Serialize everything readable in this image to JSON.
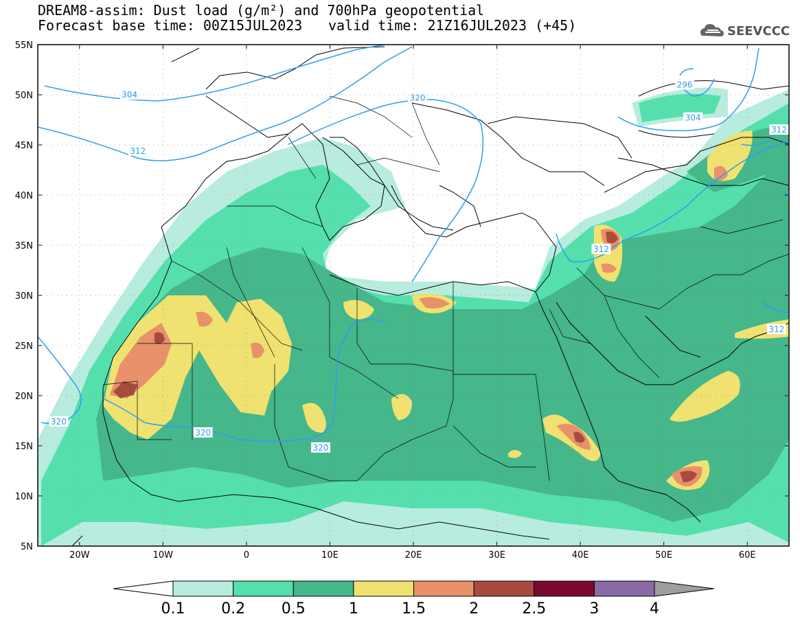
{
  "header": {
    "title": "DREAM8-assim: Dust load (g/m²) and 700hPa geopotential",
    "base_time": "Forecast base time: 00Z15JUL2023",
    "valid_time": "valid time: 21Z16JUL2023 (+45)",
    "logo_text": "SEEVCCC"
  },
  "map": {
    "lon_range": [
      -25,
      65
    ],
    "lat_range": [
      5,
      55
    ],
    "lat_labels": [
      "55N",
      "50N",
      "45N",
      "40N",
      "35N",
      "30N",
      "25N",
      "20N",
      "15N",
      "10N",
      "5N"
    ],
    "lon_labels": [
      "20W",
      "10W",
      "0",
      "10E",
      "20E",
      "30E",
      "40E",
      "50E",
      "60E"
    ],
    "contour_labels": [
      {
        "text": "304",
        "lon": -14,
        "lat": 50
      },
      {
        "text": "312",
        "lon": -13,
        "lat": 44.4
      },
      {
        "text": "320",
        "lon": 20.5,
        "lat": 49.7
      },
      {
        "text": "296",
        "lon": 52.5,
        "lat": 51
      },
      {
        "text": "304",
        "lon": 53.5,
        "lat": 47.7
      },
      {
        "text": "312",
        "lon": 63.8,
        "lat": 46.5
      },
      {
        "text": "312",
        "lon": 42.5,
        "lat": 34.6
      },
      {
        "text": "312",
        "lon": 63.5,
        "lat": 26.6
      },
      {
        "text": "320",
        "lon": -22.5,
        "lat": 17.4
      },
      {
        "text": "320",
        "lon": -5.2,
        "lat": 16.3
      },
      {
        "text": "320",
        "lon": 8.9,
        "lat": 14.8
      }
    ]
  },
  "colorbar": {
    "labels": [
      "0.1",
      "0.2",
      "0.5",
      "1",
      "1.5",
      "2",
      "2.5",
      "3",
      "4"
    ],
    "colors": [
      "#b8ecdf",
      "#55dfad",
      "#46b68b",
      "#f0e270",
      "#e8916a",
      "#a84a3e",
      "#7a0b2e",
      "#8a6aa6"
    ],
    "under_color": "#ffffff",
    "over_color": "#9e9e9e"
  }
}
